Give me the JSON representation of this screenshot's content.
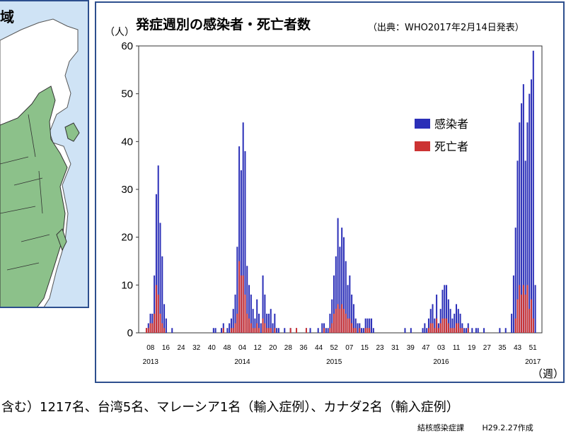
{
  "map": {
    "title_fragment": "域"
  },
  "chart_data": {
    "type": "bar",
    "title": "発症週別の感染者・死亡者数",
    "source": "（出典：WHO2017年2月14日発表）",
    "ylabel": "（人）",
    "xlabel": "（週）",
    "ylim": [
      0,
      60
    ],
    "yticks": [
      "0",
      "10",
      "20",
      "30",
      "40",
      "50",
      "60"
    ],
    "xtick_labels": [
      "08",
      "16",
      "24",
      "32",
      "40",
      "48",
      "04",
      "12",
      "20",
      "28",
      "36",
      "44",
      "52",
      "07",
      "15",
      "23",
      "31",
      "39",
      "47",
      "03",
      "11",
      "19",
      "27",
      "35",
      "43",
      "51"
    ],
    "year_labels": [
      "2013",
      "2014",
      "2015",
      "2016",
      "2017"
    ],
    "legend_position": "upper-right",
    "series": [
      {
        "name": "感染者",
        "color": "#2b2fb8",
        "values": [
          0,
          0,
          1,
          2,
          4,
          4,
          12,
          29,
          35,
          23,
          16,
          6,
          3,
          0,
          0,
          1,
          0,
          0,
          0,
          0,
          0,
          0,
          0,
          0,
          0,
          0,
          0,
          0,
          0,
          0,
          0,
          0,
          0,
          0,
          0,
          0,
          1,
          1,
          0,
          0,
          1,
          2,
          0,
          1,
          2,
          3,
          5,
          8,
          18,
          39,
          34,
          44,
          38,
          14,
          10,
          8,
          5,
          3,
          7,
          4,
          2,
          12,
          8,
          4,
          4,
          5,
          2,
          4,
          1,
          1,
          0,
          0,
          1,
          0,
          0,
          1,
          0,
          0,
          1,
          0,
          0,
          0,
          0,
          1,
          0,
          1,
          0,
          0,
          0,
          1,
          0,
          2,
          2,
          1,
          1,
          4,
          7,
          12,
          16,
          24,
          18,
          22,
          20,
          15,
          10,
          12,
          8,
          6,
          3,
          2,
          2,
          1,
          1,
          3,
          3,
          3,
          3,
          1,
          0,
          0,
          0,
          0,
          0,
          0,
          0,
          0,
          0,
          0,
          0,
          0,
          0,
          0,
          0,
          1,
          0,
          0,
          1,
          0,
          0,
          0,
          0,
          0,
          1,
          2,
          1,
          3,
          5,
          6,
          3,
          8,
          2,
          5,
          9,
          10,
          10,
          7,
          5,
          3,
          4,
          6,
          5,
          4,
          2,
          1,
          1,
          2,
          0,
          1,
          0,
          1,
          1,
          0,
          0,
          1,
          0,
          0,
          0,
          0,
          0,
          0,
          0,
          1,
          0,
          0,
          1,
          0,
          0,
          4,
          12,
          22,
          36,
          44,
          48,
          52,
          36,
          44,
          50,
          53,
          59,
          10
        ],
        "data_note": "weekly values estimated from bar heights"
      },
      {
        "name": "死亡者",
        "color": "#cc3333",
        "values": [
          0,
          0,
          1,
          1,
          2,
          2,
          4,
          10,
          8,
          4,
          2,
          1,
          0,
          0,
          0,
          0,
          0,
          0,
          0,
          0,
          0,
          0,
          0,
          0,
          0,
          0,
          0,
          0,
          0,
          0,
          0,
          0,
          0,
          0,
          0,
          0,
          0,
          0,
          0,
          0,
          0,
          1,
          0,
          0,
          0,
          1,
          1,
          2,
          4,
          15,
          12,
          12,
          8,
          4,
          3,
          2,
          1,
          1,
          2,
          1,
          0,
          3,
          2,
          1,
          1,
          1,
          0,
          1,
          0,
          0,
          0,
          0,
          0,
          0,
          0,
          1,
          0,
          0,
          1,
          0,
          0,
          0,
          0,
          1,
          0,
          0,
          0,
          0,
          0,
          0,
          0,
          0,
          1,
          0,
          0,
          1,
          2,
          4,
          5,
          6,
          5,
          6,
          5,
          4,
          3,
          3,
          2,
          1,
          1,
          0,
          1,
          0,
          0,
          1,
          1,
          1,
          0,
          0,
          0,
          0,
          0,
          0,
          0,
          0,
          0,
          0,
          0,
          0,
          0,
          0,
          0,
          0,
          0,
          0,
          0,
          0,
          0,
          0,
          0,
          0,
          0,
          0,
          0,
          0,
          0,
          1,
          2,
          2,
          1,
          3,
          1,
          2,
          3,
          3,
          3,
          2,
          1,
          1,
          1,
          2,
          2,
          1,
          1,
          0,
          0,
          1,
          0,
          0,
          0,
          0,
          0,
          0,
          0,
          0,
          0,
          0,
          0,
          0,
          0,
          0,
          0,
          0,
          0,
          0,
          0,
          0,
          0,
          0,
          0,
          3,
          7,
          10,
          8,
          10,
          8,
          10,
          5,
          7,
          3,
          0
        ]
      }
    ]
  },
  "footer": {
    "summary": "含む）1217名、台湾5名、マレーシア1名（輸入症例）、カナダ2名（輸入症例）",
    "department": "結核感染症課",
    "date": "H29.2.27作成"
  }
}
